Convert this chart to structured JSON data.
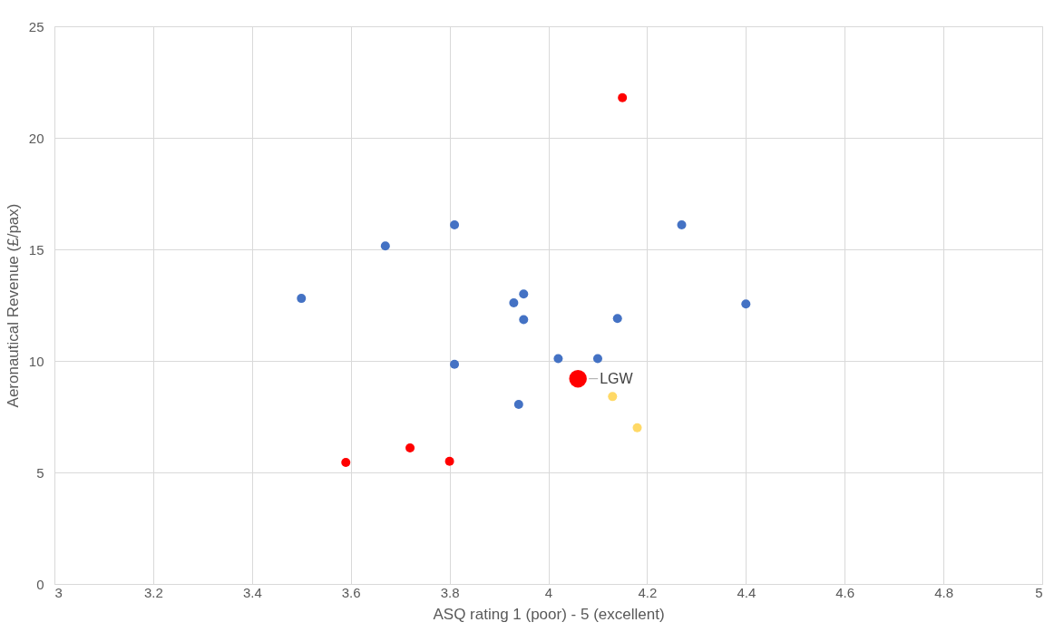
{
  "chart_data": {
    "type": "scatter",
    "xlabel": "ASQ rating 1 (poor) - 5 (excellent)",
    "ylabel": "Aeronautical Revenue (£/pax)",
    "xlim": [
      3,
      5
    ],
    "xticks": [
      3,
      3.2,
      3.4,
      3.6,
      3.8,
      4,
      4.2,
      4.4,
      4.6,
      4.8,
      5
    ],
    "ylim": [
      0,
      25
    ],
    "yticks": [
      0,
      5,
      10,
      15,
      20,
      25
    ],
    "grid": true,
    "marker": "circle",
    "series": [
      {
        "color": "#4472c4",
        "x": [
          3.5,
          3.67,
          3.81,
          3.81,
          3.93,
          3.95,
          3.95,
          3.94,
          4.02,
          4.1,
          4.14,
          4.27,
          4.4
        ],
        "values": [
          12.8,
          15.15,
          16.1,
          9.85,
          12.6,
          13.0,
          11.85,
          8.05,
          10.1,
          10.1,
          11.9,
          16.1,
          12.55
        ]
      },
      {
        "color": "#ff0000",
        "x": [
          4.15,
          3.59,
          3.72,
          3.8
        ],
        "values": [
          21.8,
          5.45,
          6.1,
          5.5
        ]
      },
      {
        "type": "bubble",
        "color": "#ff0000",
        "x": [
          4.06
        ],
        "values": [
          9.2
        ],
        "sizes": [
          1
        ]
      },
      {
        "color": "#ffd966",
        "x": [
          4.13,
          4.18
        ],
        "values": [
          8.4,
          7.0
        ]
      }
    ],
    "annotations": [
      {
        "text": "LGW",
        "x": 4.06,
        "y": 9.2
      }
    ]
  }
}
